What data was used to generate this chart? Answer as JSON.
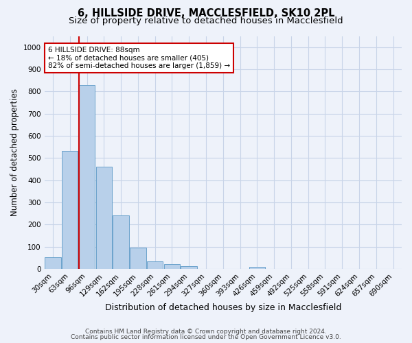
{
  "title_line1": "6, HILLSIDE DRIVE, MACCLESFIELD, SK10 2PL",
  "title_line2": "Size of property relative to detached houses in Macclesfield",
  "xlabel": "Distribution of detached houses by size in Macclesfield",
  "ylabel": "Number of detached properties",
  "categories": [
    "30sqm",
    "63sqm",
    "96sqm",
    "129sqm",
    "162sqm",
    "195sqm",
    "228sqm",
    "261sqm",
    "294sqm",
    "327sqm",
    "360sqm",
    "393sqm",
    "426sqm",
    "459sqm",
    "492sqm",
    "525sqm",
    "558sqm",
    "591sqm",
    "624sqm",
    "657sqm",
    "690sqm"
  ],
  "values": [
    52,
    533,
    830,
    460,
    242,
    97,
    35,
    20,
    12,
    0,
    0,
    0,
    8,
    0,
    0,
    0,
    0,
    0,
    0,
    0,
    0
  ],
  "bar_color": "#b8d0ea",
  "bar_edge_color": "#6ba3cc",
  "vline_color": "#cc0000",
  "annotation_text": "6 HILLSIDE DRIVE: 88sqm\n← 18% of detached houses are smaller (405)\n82% of semi-detached houses are larger (1,859) →",
  "annotation_box_color": "#ffffff",
  "annotation_box_edgecolor": "#cc0000",
  "ylim": [
    0,
    1050
  ],
  "yticks": [
    0,
    100,
    200,
    300,
    400,
    500,
    600,
    700,
    800,
    900,
    1000
  ],
  "grid_color": "#c8d4e8",
  "footer_line1": "Contains HM Land Registry data © Crown copyright and database right 2024.",
  "footer_line2": "Contains public sector information licensed under the Open Government Licence v3.0.",
  "bg_color": "#eef2fa",
  "title_fontsize": 10.5,
  "subtitle_fontsize": 9.5,
  "tick_fontsize": 7.5,
  "xlabel_fontsize": 9,
  "ylabel_fontsize": 8.5,
  "annotation_fontsize": 7.5,
  "footer_fontsize": 6.5
}
